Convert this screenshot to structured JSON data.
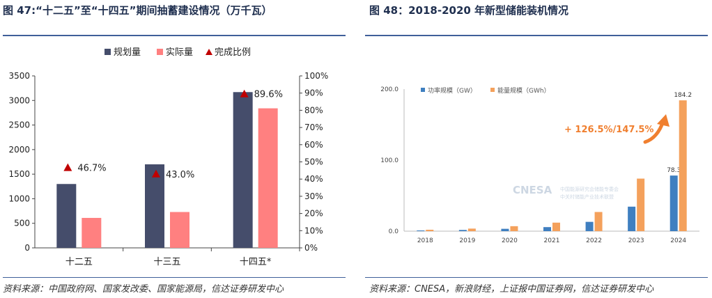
{
  "left": {
    "title": "图 47:“十二五”至“十四五”期间抽蓄建设情况（万千瓦）",
    "source": "资料来源：中国政府网、国家发改委、国家能源局，信达证券研发中心"
  },
  "right": {
    "title": "图 48：2018-2020 年新型储能装机情况",
    "source": "资料来源：CNESA，新浪财经，上证报中国证券网，信达证券研发中心",
    "watermark_line1": "CNESA",
    "watermark_line2": "中国能源研究会储能专委会",
    "watermark_line3": "中关村储能产业技术联盟",
    "growth_annotation": "+ 126.5%/147.5%"
  },
  "chart_data": [
    {
      "type": "bar",
      "categories": [
        "十二五",
        "十三五",
        "十四五*"
      ],
      "series": [
        {
          "name": "规划量",
          "values": [
            1300,
            1700,
            3170
          ],
          "color": "#454d6b"
        },
        {
          "name": "实际量",
          "values": [
            610,
            730,
            2840
          ],
          "color": "#ff8080"
        }
      ],
      "line_series": {
        "name": "完成比例",
        "values": [
          46.7,
          43.0,
          89.6
        ],
        "labels": [
          "46.7%",
          "43.0%",
          "89.6%"
        ],
        "color": "#c00000",
        "marker": "triangle"
      },
      "ylim": [
        0,
        3500
      ],
      "yticks": [
        "0",
        "500",
        "1000",
        "1500",
        "2000",
        "2500",
        "3000",
        "3500"
      ],
      "y2lim": [
        0,
        100
      ],
      "y2ticks": [
        "0%",
        "10%",
        "20%",
        "30%",
        "40%",
        "50%",
        "60%",
        "70%",
        "80%",
        "90%",
        "100%"
      ],
      "legend_position": "top",
      "grid": false
    },
    {
      "type": "bar",
      "categories": [
        "2018",
        "2019",
        "2020",
        "2021",
        "2022",
        "2023",
        "2024"
      ],
      "series": [
        {
          "name": "功率规模（GW）",
          "values": [
            1.0,
            1.7,
            3.3,
            5.7,
            13.1,
            34.5,
            78.3
          ],
          "color": "#3f7fc0"
        },
        {
          "name": "能量规模（GWh）",
          "values": [
            2.0,
            3.6,
            7.0,
            12.0,
            27.0,
            74.0,
            184.2
          ],
          "color": "#f4a15c"
        }
      ],
      "data_labels": {
        "功率规模（GW）": {
          "6": "78.3"
        },
        "能量规模（GWh）": {
          "6": "184.2"
        }
      },
      "ylim": [
        0,
        200
      ],
      "yticks": [
        "0.0",
        "100.0",
        "200.0"
      ],
      "legend_position": "top-left",
      "grid": false
    }
  ]
}
